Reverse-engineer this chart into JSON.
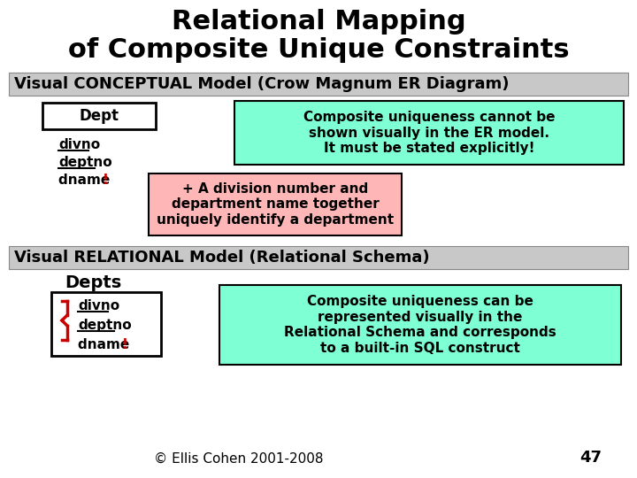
{
  "title_line1": "Relational Mapping",
  "title_line2": "of Composite Unique Constraints",
  "title_fontsize": 22,
  "section1_label": "Visual CONCEPTUAL Model (Crow Magnum ER Diagram)",
  "section2_label": "Visual RELATIONAL Model (Relational Schema)",
  "section_bg": "#c8c8c8",
  "section_fontsize": 13,
  "dept_box_label": "Dept",
  "dept_attrs": [
    "divno",
    "deptno",
    "dname"
  ],
  "dept_underline": [
    true,
    true,
    false
  ],
  "depts_box_label": "Depts",
  "depts_attrs": [
    "divno",
    "deptno",
    "dname"
  ],
  "depts_underline": [
    true,
    true,
    false
  ],
  "cyan_box1_text": "Composite uniqueness cannot be\nshown visually in the ER model.\nIt must be stated explicitly!",
  "pink_box_text": "+ A division number and\ndepartment name together\nuniquely identify a department",
  "cyan_box2_text": "Composite uniqueness can be\nrepresented visually in the\nRelational Schema and corresponds\nto a built-in SQL construct",
  "cyan_color": "#7fffd4",
  "pink_color": "#ffb6b6",
  "footer_text": "© Ellis Cohen 2001-2008",
  "page_num": "47",
  "bg_color": "#ffffff",
  "text_color": "#000000",
  "red_color": "#cc0000"
}
